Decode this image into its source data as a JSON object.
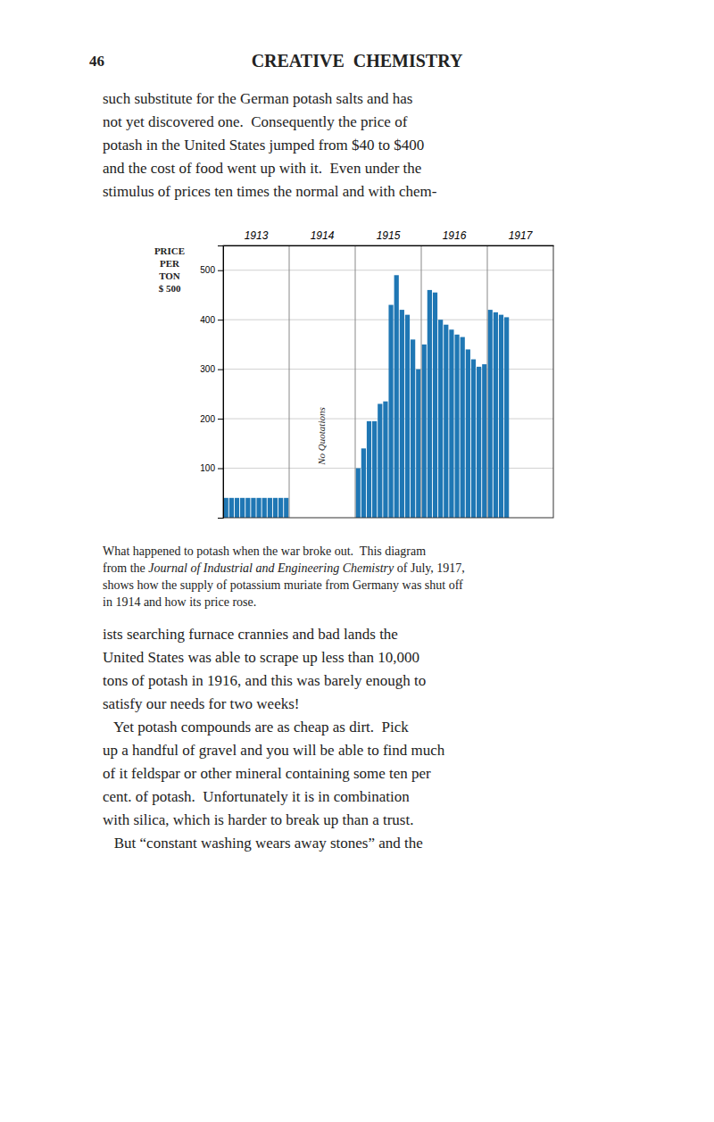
{
  "chart_data": {
    "type": "bar",
    "categories": [
      "1913",
      "1914",
      "1915",
      "1916",
      "1917"
    ],
    "values": [
      [
        40,
        40,
        40,
        40,
        40,
        40,
        40,
        40,
        40,
        40,
        40,
        40
      ],
      [],
      [
        100,
        140,
        195,
        195,
        230,
        235,
        430,
        490,
        420,
        410,
        360,
        300
      ],
      [
        350,
        460,
        455,
        400,
        390,
        380,
        370,
        365,
        340,
        320,
        305,
        310
      ],
      [
        420,
        415,
        410,
        405
      ]
    ],
    "y_label": [
      "PRICE",
      "PER",
      "TON",
      "$ 500"
    ],
    "ylim": [
      0,
      550
    ],
    "yticks": [
      100,
      200,
      300,
      400,
      500
    ],
    "grid": true,
    "annotations": [
      {
        "text": "No Quotations",
        "category": "1914"
      }
    ]
  },
  "page": {
    "number": "46",
    "title": "CREATIVE  CHEMISTRY",
    "paragraphs": [
      [
        "such substitute for the German potash salts and has",
        "not yet discovered one.  Consequently the price of",
        "potash in the United States jumped from $40 to $400",
        "and the cost of food went up with it.  Even under the",
        "stimulus of prices ten times the normal and with chem-"
      ],
      [
        "ists searching furnace crannies and bad lands the",
        "United States was able to scrape up less than 10,000",
        "tons of potash in 1916, and this was barely enough to",
        "satisfy our needs for two weeks!"
      ],
      [
        "   Yet potash compounds are as cheap as dirt.  Pick",
        "up a handful of gravel and you will be able to find much",
        "of it feldspar or other mineral containing some ten per",
        "cent. of potash.  Unfortunately it is in combination",
        "with silica, which is harder to break up than a trust."
      ],
      [
        "   But “constant washing wears away stones” and the"
      ]
    ],
    "caption": [
      [
        "What happened to potash when the war broke out.  This diagram"
      ],
      [
        "from the ",
        "Journal of Industrial and Engineering Chemistry",
        " of July, 1917,"
      ],
      [
        "shows how the supply of potassium muriate from Germany was shut off"
      ],
      [
        "in 1914 and how its price rose."
      ]
    ]
  }
}
